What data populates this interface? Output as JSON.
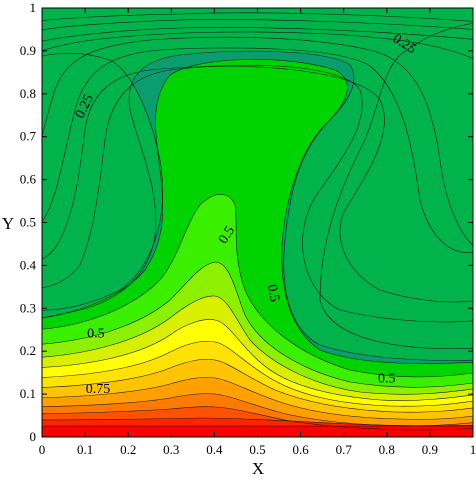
{
  "chart_data": {
    "type": "contour",
    "title": "",
    "xlabel": "X",
    "ylabel": "Y",
    "xlim": [
      0,
      1
    ],
    "ylim": [
      0,
      1
    ],
    "x_ticks": [
      "0",
      "0.1",
      "0.2",
      "0.3",
      "0.4",
      "0.5",
      "0.6",
      "0.7",
      "0.8",
      "0.9",
      "1"
    ],
    "y_ticks": [
      "0",
      "0.1",
      "0.2",
      "0.3",
      "0.4",
      "0.5",
      "0.6",
      "0.7",
      "0.8",
      "0.9",
      "1"
    ],
    "grid": false,
    "legend": "none",
    "colormap": [
      "#9b7cf5",
      "#6a5df0",
      "#2a45ee",
      "#0000ff",
      "#0a30d0",
      "#1250b0",
      "#105f90",
      "#0d7777",
      "#0a9e6e",
      "#00b34a",
      "#00d400",
      "#3af000",
      "#8cf000",
      "#d8f000",
      "#ffff00",
      "#ffe200",
      "#ffc400",
      "#ffa000",
      "#ff7a00",
      "#ff5200",
      "#ff2400",
      "#ff0000"
    ],
    "contour_labels": [
      {
        "text": "0.25",
        "x": 0.84,
        "y": 0.915
      },
      {
        "text": "0.25",
        "x": 0.1,
        "y": 0.77
      },
      {
        "text": "0.5",
        "x": 0.43,
        "y": 0.47
      },
      {
        "text": "0.5",
        "x": 0.535,
        "y": 0.335
      },
      {
        "text": "0.5",
        "x": 0.125,
        "y": 0.24
      },
      {
        "text": "0.5",
        "x": 0.8,
        "y": 0.135
      },
      {
        "text": "0.75",
        "x": 0.13,
        "y": 0.11
      }
    ]
  }
}
